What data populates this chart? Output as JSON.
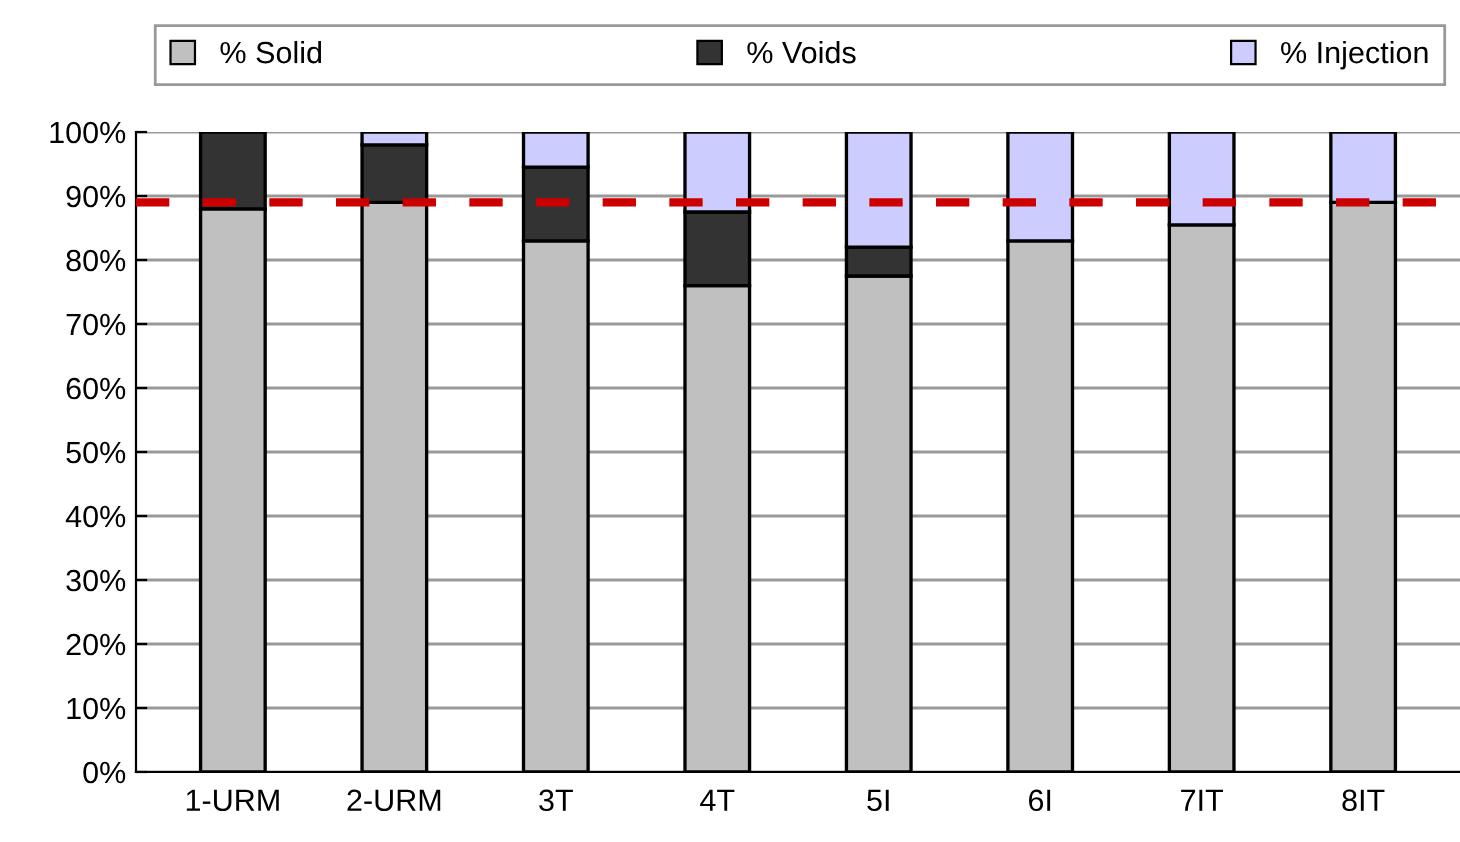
{
  "chart_data": {
    "type": "bar",
    "stacked": true,
    "categories": [
      "1-URM",
      "2-URM",
      "3T",
      "4T",
      "5I",
      "6I",
      "7IT",
      "8IT"
    ],
    "series": [
      {
        "name": "% Solid",
        "color": "#c0c0c0",
        "values": [
          88,
          89,
          83,
          76,
          77.5,
          83,
          85.5,
          89
        ]
      },
      {
        "name": "% Voids",
        "color": "#333333",
        "values": [
          12,
          9,
          11.5,
          11.5,
          4.5,
          null,
          null,
          null
        ]
      },
      {
        "name": "% Injection",
        "color": "#ccccff",
        "values": [
          null,
          2,
          5.5,
          12.5,
          18,
          17,
          14.5,
          11
        ]
      }
    ],
    "ylim": [
      0,
      100
    ],
    "yticks": [
      {
        "value": 0,
        "label": "0%"
      },
      {
        "value": 10,
        "label": "10%"
      },
      {
        "value": 20,
        "label": "20%"
      },
      {
        "value": 30,
        "label": "30%"
      },
      {
        "value": 40,
        "label": "40%"
      },
      {
        "value": 50,
        "label": "50%"
      },
      {
        "value": 60,
        "label": "60%"
      },
      {
        "value": 70,
        "label": "70%"
      },
      {
        "value": 80,
        "label": "80%"
      },
      {
        "value": 90,
        "label": "90%"
      },
      {
        "value": 100,
        "label": "100%"
      }
    ],
    "grid": "y",
    "legend": "top",
    "ref_lines": [
      {
        "axis": "y",
        "value": 89,
        "color": "#cc0000",
        "line_style": "dashed"
      }
    ]
  }
}
